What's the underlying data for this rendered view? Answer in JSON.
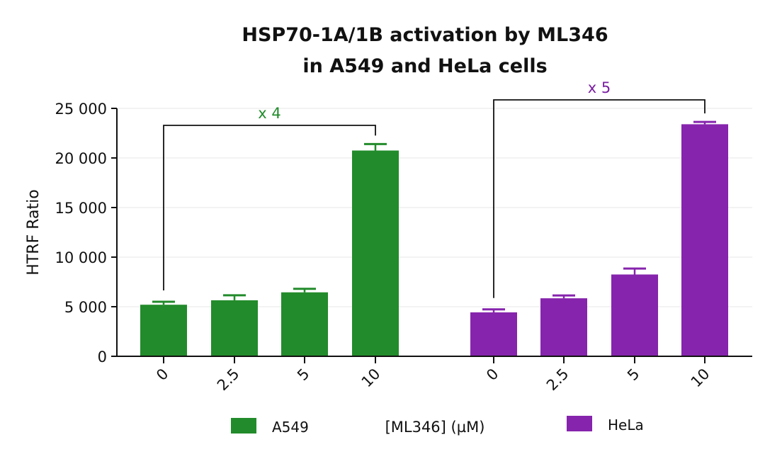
{
  "chart_data": {
    "type": "bar",
    "title": [
      "HSP70-1A/1B activation by ML346",
      "in A549 and HeLa cells"
    ],
    "xlabel": "[ML346] (µM)",
    "ylabel": "HTRF Ratio",
    "ylim": [
      0,
      25000
    ],
    "yticks": [
      0,
      5000,
      10000,
      15000,
      20000,
      25000
    ],
    "ytick_labels": [
      "0",
      "5 000",
      "10 000",
      "15 000",
      "20 000",
      "25 000"
    ],
    "grid": true,
    "legend_position": "bottom",
    "categories": [
      "0",
      "2.5",
      "5",
      "10"
    ],
    "series": [
      {
        "name": "A549",
        "color": "#228B2B",
        "values": [
          5200,
          5650,
          6450,
          20750
        ],
        "error": [
          300,
          500,
          350,
          650
        ],
        "annotation": {
          "label": "x 4",
          "from": "0",
          "to": "10"
        }
      },
      {
        "name": "HeLa",
        "color": "#8624AD",
        "values": [
          4430,
          5850,
          8250,
          23400
        ],
        "error": [
          300,
          280,
          600,
          230
        ],
        "annotation": {
          "label": "x 5",
          "from": "0",
          "to": "10"
        }
      }
    ]
  }
}
